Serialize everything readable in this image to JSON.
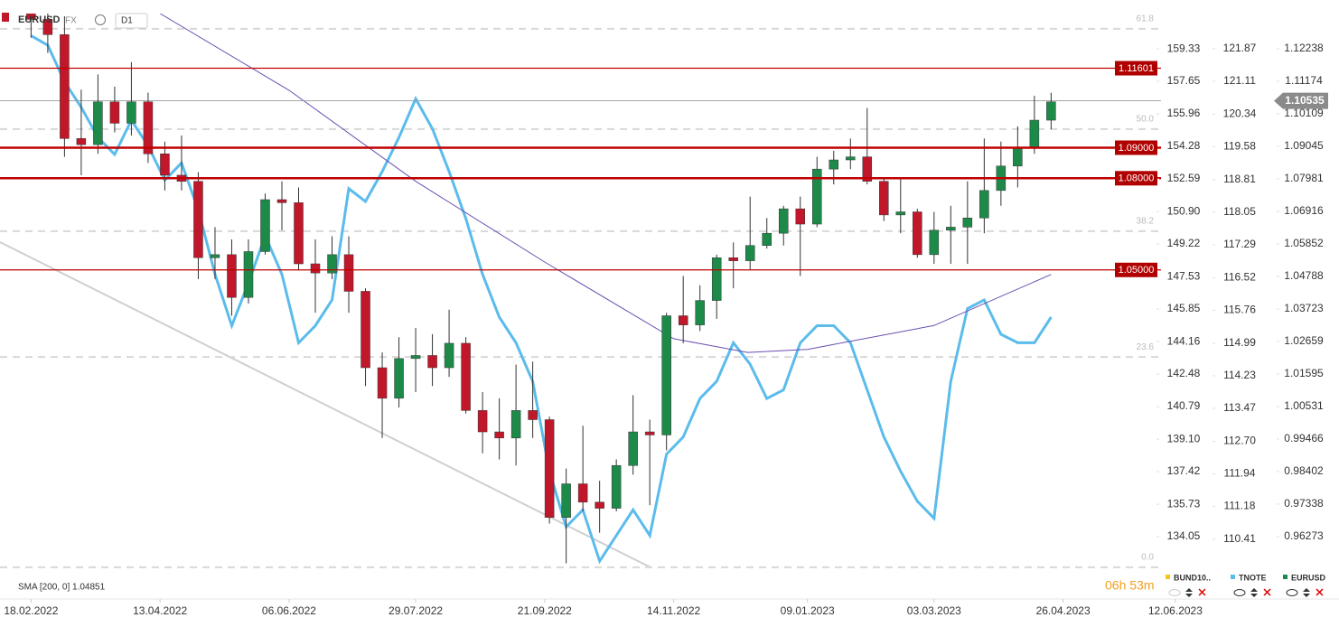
{
  "header": {
    "symbol": "EURUSD",
    "market": "FX",
    "interval": "D1"
  },
  "chart_data": {
    "type": "candlestick",
    "x": [
      "18.02.2022",
      "25.02.2022",
      "04.03.2022",
      "11.03.2022",
      "18.03.2022",
      "25.03.2022",
      "01.04.2022",
      "08.04.2022",
      "15.04.2022",
      "22.04.2022",
      "29.04.2022",
      "06.05.2022",
      "13.05.2022",
      "20.05.2022",
      "27.05.2022",
      "03.06.2022",
      "10.06.2022",
      "17.06.2022",
      "24.06.2022",
      "01.07.2022",
      "08.07.2022",
      "15.07.2022",
      "22.07.2022",
      "29.07.2022",
      "05.08.2022",
      "12.08.2022",
      "19.08.2022",
      "26.08.2022",
      "02.09.2022",
      "09.09.2022",
      "16.09.2022",
      "23.09.2022",
      "30.09.2022",
      "07.10.2022",
      "14.10.2022",
      "21.10.2022",
      "28.10.2022",
      "04.11.2022",
      "11.11.2022",
      "18.11.2022",
      "25.11.2022",
      "02.12.2022",
      "09.12.2022",
      "16.12.2022",
      "23.12.2022",
      "30.12.2022",
      "06.01.2023",
      "13.01.2023",
      "20.01.2023",
      "27.01.2023",
      "03.02.2023",
      "10.02.2023",
      "17.02.2023",
      "24.02.2023",
      "03.03.2023",
      "10.03.2023",
      "17.03.2023",
      "24.03.2023",
      "31.03.2023",
      "07.04.2023",
      "14.04.2023",
      "21.04.2023"
    ],
    "open": [
      1.136,
      1.132,
      1.127,
      1.093,
      1.091,
      1.105,
      1.098,
      1.105,
      1.088,
      1.081,
      1.079,
      1.054,
      1.055,
      1.041,
      1.056,
      1.073,
      1.072,
      1.052,
      1.049,
      1.055,
      1.043,
      1.018,
      1.008,
      1.021,
      1.022,
      1.018,
      1.026,
      1.004,
      0.997,
      0.995,
      1.004,
      1.001,
      0.969,
      0.98,
      0.974,
      0.972,
      0.986,
      0.997,
      0.996,
      1.035,
      1.032,
      1.04,
      1.054,
      1.053,
      1.058,
      1.062,
      1.07,
      1.065,
      1.083,
      1.086,
      1.087,
      1.079,
      1.068,
      1.069,
      1.055,
      1.063,
      1.064,
      1.067,
      1.076,
      1.084,
      1.09,
      1.099
    ],
    "high": [
      1.142,
      1.138,
      1.133,
      1.109,
      1.114,
      1.11,
      1.118,
      1.108,
      1.092,
      1.094,
      1.082,
      1.064,
      1.06,
      1.06,
      1.075,
      1.079,
      1.077,
      1.06,
      1.061,
      1.061,
      1.044,
      1.023,
      1.028,
      1.031,
      1.029,
      1.037,
      1.028,
      1.01,
      1.008,
      1.019,
      1.02,
      1.002,
      0.985,
      0.999,
      0.981,
      0.988,
      1.009,
      1.001,
      1.036,
      1.048,
      1.045,
      1.055,
      1.059,
      1.074,
      1.067,
      1.071,
      1.074,
      1.087,
      1.089,
      1.093,
      1.103,
      1.08,
      1.08,
      1.07,
      1.069,
      1.071,
      1.079,
      1.093,
      1.092,
      1.097,
      1.107,
      1.108
    ],
    "low": [
      1.126,
      1.121,
      1.087,
      1.081,
      1.088,
      1.095,
      1.094,
      1.085,
      1.076,
      1.076,
      1.047,
      1.047,
      1.035,
      1.039,
      1.055,
      1.063,
      1.05,
      1.036,
      1.047,
      1.036,
      1.012,
      0.995,
      1.005,
      1.01,
      1.012,
      1.015,
      1.003,
      0.99,
      0.988,
      0.986,
      0.995,
      0.967,
      0.954,
      0.971,
      0.964,
      0.971,
      0.983,
      0.973,
      0.991,
      1.026,
      1.03,
      1.034,
      1.044,
      1.05,
      1.057,
      1.058,
      1.048,
      1.064,
      1.078,
      1.083,
      1.078,
      1.066,
      1.062,
      1.054,
      1.052,
      1.052,
      1.052,
      1.062,
      1.071,
      1.077,
      1.088,
      1.096
    ],
    "close": [
      1.132,
      1.127,
      1.093,
      1.091,
      1.105,
      1.098,
      1.105,
      1.088,
      1.081,
      1.079,
      1.054,
      1.055,
      1.041,
      1.056,
      1.073,
      1.072,
      1.052,
      1.049,
      1.055,
      1.043,
      1.018,
      1.008,
      1.021,
      1.022,
      1.018,
      1.026,
      1.004,
      0.997,
      0.995,
      1.004,
      1.001,
      0.969,
      0.98,
      0.974,
      0.972,
      0.986,
      0.997,
      0.996,
      1.035,
      1.032,
      1.04,
      1.054,
      1.053,
      1.058,
      1.062,
      1.07,
      1.065,
      1.083,
      1.086,
      1.087,
      1.079,
      1.068,
      1.069,
      1.055,
      1.063,
      1.064,
      1.067,
      1.076,
      1.084,
      1.09,
      1.099,
      1.105
    ],
    "up_color": "#1e8a4a",
    "down_color": "#c0172a",
    "xlim": [
      "05.02.2022",
      "06.06.2023"
    ],
    "xticks": [
      "18.02.2022",
      "13.04.2022",
      "06.06.2022",
      "29.07.2022",
      "21.09.2022",
      "14.11.2022",
      "09.01.2023",
      "03.03.2023",
      "26.04.2023",
      "12.06.2023"
    ],
    "ylim": [
      0.9432,
      1.1339
    ],
    "yticks": [
      1.12238,
      1.11174,
      1.10109,
      1.09045,
      1.07981,
      1.06916,
      1.05852,
      1.04788,
      1.03723,
      1.02659,
      1.01595,
      1.00531,
      0.99466,
      0.98402,
      0.97338,
      0.96273
    ],
    "y2lim": [
      109.08,
      122.69
    ],
    "y2ticks": [
      121.87,
      121.11,
      120.34,
      119.58,
      118.81,
      118.05,
      117.29,
      116.52,
      115.76,
      114.99,
      114.23,
      113.47,
      {
        "value": 112.7,
        "label": "112.70"
      },
      111.94,
      111.18,
      110.41
    ],
    "y3lim": [
      130.96,
      161.16
    ],
    "y3ticks": [
      159.33,
      157.65,
      155.96,
      154.28,
      152.59,
      {
        "value": 150.9,
        "label": "150.90"
      },
      149.22,
      147.53,
      145.85,
      144.16,
      142.48,
      140.79,
      {
        "value": 139.1,
        "label": "139.10"
      },
      137.42,
      135.73,
      134.05
    ],
    "series": [
      {
        "name": "TNOTE",
        "color": "#5bbcec",
        "axis": "y2",
        "values": [
          122.17,
          121.95,
          121.1,
          120.5,
          119.8,
          119.4,
          120.2,
          119.6,
          118.8,
          119.2,
          118.1,
          116.6,
          115.4,
          116.4,
          117.5,
          116.6,
          115.0,
          115.4,
          116.0,
          118.6,
          118.3,
          119.0,
          119.8,
          120.7,
          120.0,
          119.0,
          117.9,
          116.6,
          115.6,
          115.0,
          114.1,
          112.0,
          110.7,
          111.1,
          109.9,
          110.5,
          111.1,
          110.5,
          112.4,
          112.8,
          113.7,
          114.1,
          115.0,
          114.5,
          113.7,
          113.9,
          115.0,
          115.4,
          115.4,
          115.0,
          113.9,
          112.8,
          112.0,
          111.3,
          110.9,
          114.1,
          115.8,
          116.0,
          115.2,
          115.0,
          115.0,
          115.6
        ]
      }
    ],
    "sma": {
      "label": "SMA [200, 0] 1.04851",
      "color": "#6a4fb0",
      "x": [
        "13.04.2022",
        "06.06.2022",
        "29.07.2022",
        "21.09.2022",
        "14.11.2022",
        "15.12.2022",
        "09.01.2023",
        "03.03.2023",
        "21.04.2023"
      ],
      "values": [
        1.1339,
        1.1088,
        1.079,
        1.0526,
        1.0275,
        1.023,
        1.024,
        1.0318,
        1.04851
      ]
    },
    "levels": [
      1.11601,
      {
        "value": 1.09,
        "label": "1.09000"
      },
      {
        "value": 1.08,
        "label": "1.08000"
      },
      {
        "value": 1.05,
        "label": "1.05000"
      }
    ],
    "fib_levels": [
      {
        "value": 1.1289,
        "label": "61.8"
      },
      {
        "value": 1.0961,
        "label": "50.0"
      },
      {
        "value": 1.0627,
        "label": "38.2"
      },
      {
        "value": 1.0215,
        "label": "23.6"
      },
      {
        "value": 0.9527,
        "label": "0.0"
      }
    ],
    "last_price": {
      "value": 1.10535,
      "label": "1.10535"
    },
    "countdown": "06h 53m",
    "legend": [
      {
        "name": "BUND10..",
        "color": "#f5c518"
      },
      {
        "name": "TNOTE",
        "color": "#5bbcec"
      },
      {
        "name": "EURUSD",
        "color": "#1e8a4a"
      }
    ]
  }
}
